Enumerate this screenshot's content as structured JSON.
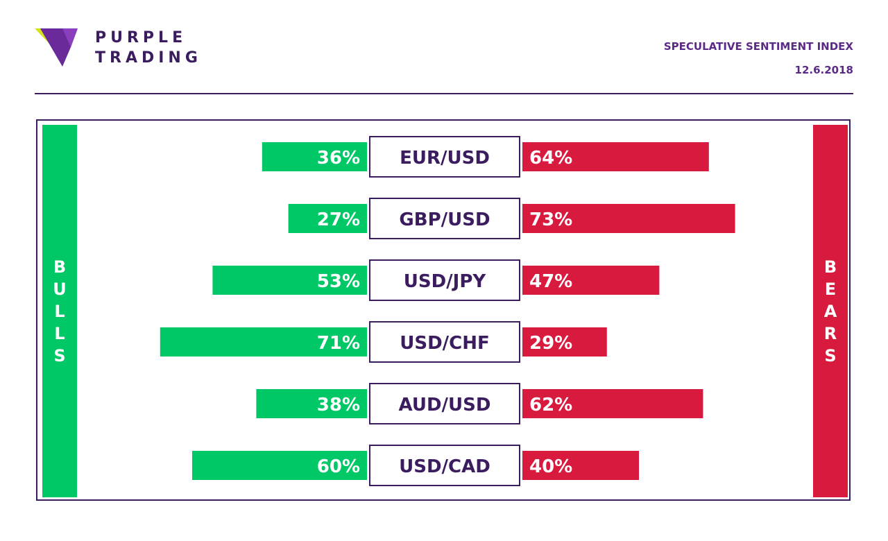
{
  "brand": {
    "line1": "PURPLE",
    "line2": "TRADING",
    "icon": "purple-triangle-logo"
  },
  "header": {
    "title": "SPECULATIVE SENTIMENT INDEX",
    "date": "12.6.2018"
  },
  "colors": {
    "bulls": "#00c866",
    "bears": "#d91a3f",
    "purple": "#3b1d5f"
  },
  "chart_data": {
    "type": "bar",
    "categories": [
      "EUR/USD",
      "GBP/USD",
      "USD/JPY",
      "USD/CHF",
      "AUD/USD",
      "USD/CAD"
    ],
    "series": [
      {
        "name": "BULLS",
        "values": [
          36,
          27,
          53,
          71,
          38,
          60
        ],
        "labels": [
          "36%",
          "27%",
          "53%",
          "71%",
          "38%",
          "60%"
        ]
      },
      {
        "name": "BEARS",
        "values": [
          64,
          73,
          47,
          29,
          62,
          40
        ],
        "labels": [
          "64%",
          "73%",
          "47%",
          "29%",
          "62%",
          "40%"
        ]
      }
    ],
    "unit": "%"
  }
}
